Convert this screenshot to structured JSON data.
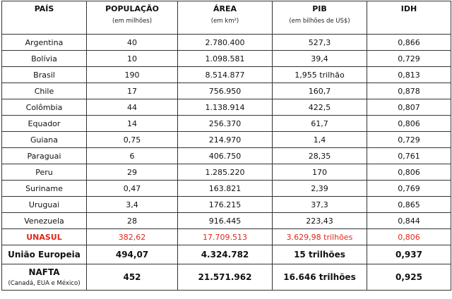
{
  "headers": [
    {
      "title": "PAÍS",
      "sub": ""
    },
    {
      "title": "POPULAÇÃO",
      "sub": "(em milhões)"
    },
    {
      "title": "ÁREA",
      "sub": "(em km²)"
    },
    {
      "title": "PIB",
      "sub": "(em bilhões de US$)"
    },
    {
      "title": "IDH",
      "sub": ""
    }
  ],
  "rows": [
    [
      "Argentina",
      "40",
      "2.780.400",
      "527,3",
      "0,866"
    ],
    [
      "Bolívia",
      "10",
      "1.098.581",
      "39,4",
      "0,729"
    ],
    [
      "Brasil",
      "190",
      "8.514.877",
      "1,955 trilhão",
      "0,813"
    ],
    [
      "Chile",
      "17",
      "756.950",
      "160,7",
      "0,878"
    ],
    [
      "Colômbia",
      "44",
      "1.138.914",
      "422,5",
      "0,807"
    ],
    [
      "Equador",
      "14",
      "256.370",
      "61,7",
      "0,806"
    ],
    [
      "Guiana",
      "0,75",
      "214.970",
      "1,4",
      "0,729"
    ],
    [
      "Paraguai",
      "6",
      "406.750",
      "28,35",
      "0,761"
    ],
    [
      "Peru",
      "29",
      "1.285.220",
      "170",
      "0,806"
    ],
    [
      "Suriname",
      "0,47",
      "163.821",
      "2,39",
      "0,769"
    ],
    [
      "Uruguai",
      "3,4",
      "176.215",
      "37,3",
      "0,865"
    ],
    [
      "Venezuela",
      "28",
      "916.445",
      "223,43",
      "0,844"
    ]
  ],
  "unasul": [
    "UNASUL",
    "382,62",
    "17.709.513",
    "3.629,98 trilhões",
    "0,806"
  ],
  "ue": [
    "União Europeia",
    "494,07",
    "4.324.782",
    "15 trilhões",
    "0,937"
  ],
  "nafta": {
    "name": "NAFTA",
    "sub": "(Canadá, EUA e México)",
    "values": [
      "452",
      "21.571.962",
      "16.646 trilhões",
      "0,925"
    ]
  },
  "colors": {
    "unasul": "#e0261a",
    "border": "#333333"
  }
}
